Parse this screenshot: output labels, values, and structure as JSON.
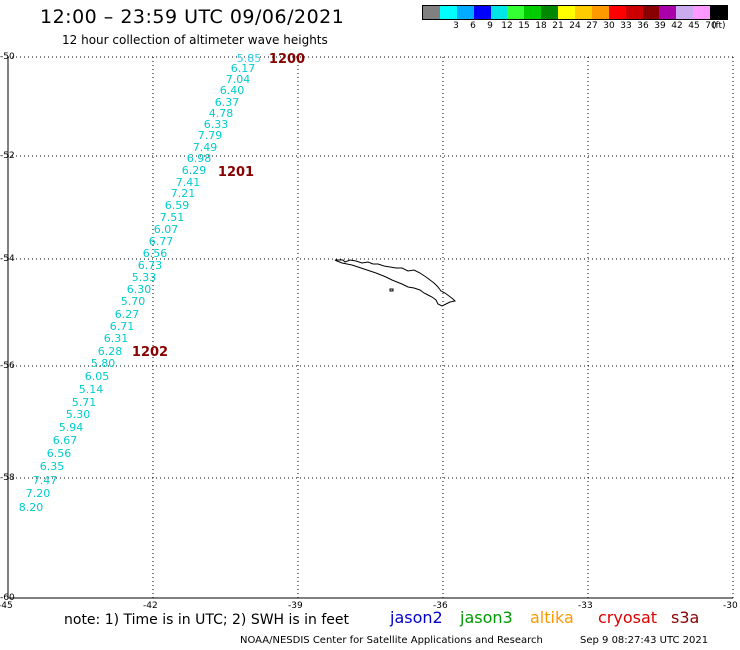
{
  "header": {
    "title": "12:00 – 23:59 UTC 09/06/2021",
    "subtitle": "12 hour collection of altimeter wave heights"
  },
  "legend": {
    "colors": [
      "#808080",
      "#00ffff",
      "#00aaff",
      "#0000ff",
      "#00e5e5",
      "#33ff33",
      "#00cc00",
      "#008800",
      "#ffff00",
      "#ffcc00",
      "#ff9900",
      "#ff0000",
      "#cc0000",
      "#880000",
      "#aa00aa",
      "#ccaaee",
      "#ff99ff",
      "#000000"
    ],
    "labels": [
      "3",
      "6",
      "9",
      "12",
      "15",
      "18",
      "21",
      "24",
      "27",
      "30",
      "33",
      "36",
      "39",
      "42",
      "45",
      "70"
    ],
    "unit": "(ft)"
  },
  "map": {
    "lat_labels": [
      "-50",
      "-52",
      "-54",
      "-56",
      "-58",
      "-60"
    ],
    "lon_labels": [
      "-45",
      "-42",
      "-39",
      "-36",
      "-33",
      "-30"
    ],
    "swh_values": [
      [
        "5.85",
        249,
        58,
        "#33ccee"
      ],
      [
        "6.17",
        243,
        68,
        "#00cccc"
      ],
      [
        "7.04",
        238,
        79,
        "#00cccc"
      ],
      [
        "6.40",
        232,
        90,
        "#00cccc"
      ],
      [
        "6.37",
        227,
        102,
        "#00cccc"
      ],
      [
        "4.78",
        221,
        113,
        "#00cccc"
      ],
      [
        "6.33",
        216,
        124,
        "#00cccc"
      ],
      [
        "7.79",
        210,
        135,
        "#00cccc"
      ],
      [
        "7.49",
        205,
        147,
        "#00cccc"
      ],
      [
        "6.98",
        199,
        158,
        "#00cccc"
      ],
      [
        "6.29",
        194,
        170,
        "#00cccc"
      ],
      [
        "7.41",
        188,
        182,
        "#00cccc"
      ],
      [
        "7.21",
        183,
        193,
        "#00cccc"
      ],
      [
        "6.59",
        177,
        205,
        "#00cccc"
      ],
      [
        "7.51",
        172,
        217,
        "#00cccc"
      ],
      [
        "6.07",
        166,
        229,
        "#00cccc"
      ],
      [
        "6.77",
        161,
        241,
        "#00cccc"
      ],
      [
        "6.56",
        155,
        253,
        "#00cccc"
      ],
      [
        "6.73",
        150,
        265,
        "#00cccc"
      ],
      [
        "5.33",
        144,
        277,
        "#00cccc"
      ],
      [
        "6.30",
        139,
        289,
        "#00cccc"
      ],
      [
        "5.70",
        133,
        301,
        "#00cccc"
      ],
      [
        "6.27",
        127,
        314,
        "#00cccc"
      ],
      [
        "6.71",
        122,
        326,
        "#00cccc"
      ],
      [
        "6.31",
        116,
        338,
        "#00cccc"
      ],
      [
        "6.28",
        110,
        351,
        "#00cccc"
      ],
      [
        "5.80",
        103,
        363,
        "#00cccc"
      ],
      [
        "6.05",
        97,
        376,
        "#00cccc"
      ],
      [
        "5.14",
        91,
        389,
        "#00cccc"
      ],
      [
        "5.71",
        84,
        402,
        "#00cccc"
      ],
      [
        "5.30",
        78,
        414,
        "#00cccc"
      ],
      [
        "5.94",
        71,
        427,
        "#00cccc"
      ],
      [
        "6.67",
        65,
        440,
        "#00cccc"
      ],
      [
        "6.56",
        59,
        453,
        "#00cccc"
      ],
      [
        "6.35",
        52,
        466,
        "#00cccc"
      ],
      [
        "7.47",
        45,
        480,
        "#00cccc"
      ],
      [
        "7.20",
        38,
        493,
        "#00cccc"
      ],
      [
        "8.20",
        31,
        507,
        "#00cccc"
      ]
    ],
    "time_labels": [
      [
        "1200",
        287,
        58
      ],
      [
        "1201",
        236,
        171
      ],
      [
        "1202",
        150,
        351
      ]
    ]
  },
  "footer": {
    "note": "note: 1) Time is in UTC; 2) SWH is in feet",
    "satellites": [
      {
        "name": "jason2",
        "color": "#0000cc"
      },
      {
        "name": "jason3",
        "color": "#009900"
      },
      {
        "name": "altika",
        "color": "#ff9900"
      },
      {
        "name": "cryosat",
        "color": "#dd0000"
      },
      {
        "name": "s3a",
        "color": "#880000"
      }
    ],
    "credit": "NOAA/NESDIS Center for Satellite Applications and Research",
    "timestamp": "Sep  9 08:27:43 UTC 2021"
  }
}
